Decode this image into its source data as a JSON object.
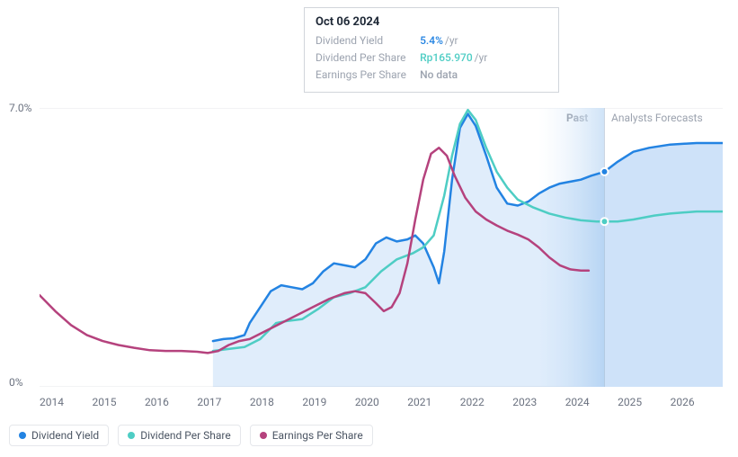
{
  "tooltip": {
    "date": "Oct 06 2024",
    "rows": [
      {
        "label": "Dividend Yield",
        "value": "5.4%",
        "unit": "/yr",
        "color": "#2383e2"
      },
      {
        "label": "Dividend Per Share",
        "value": "Rp165.970",
        "unit": "/yr",
        "color": "#4ecdc4"
      },
      {
        "label": "Earnings Per Share",
        "value": "No data",
        "unit": "",
        "color": "#9ca3af"
      }
    ]
  },
  "chart": {
    "type": "line",
    "ylim": [
      0,
      7.0
    ],
    "y_ticks": [
      0,
      7.0
    ],
    "y_tick_labels": [
      "0%",
      "7.0%"
    ],
    "x_years": [
      "2014",
      "2015",
      "2016",
      "2017",
      "2018",
      "2019",
      "2020",
      "2021",
      "2022",
      "2023",
      "2024",
      "2025",
      "2026"
    ],
    "present_x": 10.75,
    "past_region_start_x": 9.5,
    "regions": {
      "past_label": "Past",
      "forecast_label": "Analysts Forecasts"
    },
    "axis_fontsize": 12,
    "label_color": "#6b7280",
    "grid_color": "#e5e7eb",
    "background": "#ffffff",
    "past_band_fill": "#e9f2fc",
    "past_band_edge": "#cfe3f7",
    "forecast_fill": "#eaf3fd",
    "series": [
      {
        "name": "Dividend Yield",
        "color": "#2383e2",
        "fill": "rgba(35,131,226,0.14)",
        "width": 2.5,
        "marker_at": 10.75,
        "marker_y": 5.4,
        "points": [
          [
            3.3,
            1.15
          ],
          [
            3.5,
            1.2
          ],
          [
            3.7,
            1.22
          ],
          [
            3.9,
            1.3
          ],
          [
            4.0,
            1.6
          ],
          [
            4.2,
            2.0
          ],
          [
            4.4,
            2.4
          ],
          [
            4.6,
            2.55
          ],
          [
            4.8,
            2.5
          ],
          [
            5.0,
            2.45
          ],
          [
            5.2,
            2.6
          ],
          [
            5.4,
            2.9
          ],
          [
            5.6,
            3.1
          ],
          [
            5.8,
            3.05
          ],
          [
            6.0,
            3.0
          ],
          [
            6.2,
            3.2
          ],
          [
            6.4,
            3.6
          ],
          [
            6.6,
            3.75
          ],
          [
            6.8,
            3.65
          ],
          [
            7.0,
            3.7
          ],
          [
            7.15,
            3.8
          ],
          [
            7.3,
            3.6
          ],
          [
            7.5,
            3.0
          ],
          [
            7.6,
            2.6
          ],
          [
            7.7,
            3.4
          ],
          [
            7.85,
            5.2
          ],
          [
            8.0,
            6.5
          ],
          [
            8.15,
            6.85
          ],
          [
            8.3,
            6.55
          ],
          [
            8.5,
            5.8
          ],
          [
            8.7,
            5.0
          ],
          [
            8.9,
            4.6
          ],
          [
            9.1,
            4.55
          ],
          [
            9.3,
            4.65
          ],
          [
            9.5,
            4.85
          ],
          [
            9.7,
            5.0
          ],
          [
            9.9,
            5.1
          ],
          [
            10.1,
            5.15
          ],
          [
            10.3,
            5.2
          ],
          [
            10.5,
            5.3
          ],
          [
            10.75,
            5.4
          ],
          [
            11.0,
            5.65
          ],
          [
            11.3,
            5.9
          ],
          [
            11.6,
            6.0
          ],
          [
            12.0,
            6.08
          ],
          [
            12.5,
            6.12
          ],
          [
            13.0,
            6.12
          ]
        ]
      },
      {
        "name": "Dividend Per Share",
        "color": "#4ecdc4",
        "fill": "none",
        "width": 2.5,
        "marker_at": 10.75,
        "marker_y": 4.15,
        "points": [
          [
            3.3,
            0.9
          ],
          [
            3.6,
            0.95
          ],
          [
            3.9,
            1.0
          ],
          [
            4.2,
            1.2
          ],
          [
            4.5,
            1.6
          ],
          [
            4.7,
            1.65
          ],
          [
            5.0,
            1.7
          ],
          [
            5.3,
            1.95
          ],
          [
            5.6,
            2.25
          ],
          [
            5.9,
            2.35
          ],
          [
            6.2,
            2.5
          ],
          [
            6.5,
            2.9
          ],
          [
            6.8,
            3.2
          ],
          [
            7.1,
            3.35
          ],
          [
            7.3,
            3.5
          ],
          [
            7.5,
            3.8
          ],
          [
            7.7,
            4.8
          ],
          [
            7.85,
            5.8
          ],
          [
            8.0,
            6.6
          ],
          [
            8.15,
            6.95
          ],
          [
            8.3,
            6.7
          ],
          [
            8.5,
            6.0
          ],
          [
            8.7,
            5.4
          ],
          [
            8.9,
            5.0
          ],
          [
            9.1,
            4.7
          ],
          [
            9.4,
            4.5
          ],
          [
            9.7,
            4.35
          ],
          [
            10.0,
            4.25
          ],
          [
            10.3,
            4.18
          ],
          [
            10.6,
            4.15
          ],
          [
            10.75,
            4.15
          ],
          [
            11.0,
            4.15
          ],
          [
            11.3,
            4.2
          ],
          [
            11.7,
            4.3
          ],
          [
            12.0,
            4.35
          ],
          [
            12.5,
            4.4
          ],
          [
            13.0,
            4.4
          ]
        ]
      },
      {
        "name": "Earnings Per Share",
        "color": "#b5427d",
        "fill": "none",
        "width": 2.5,
        "points": [
          [
            0.0,
            2.3
          ],
          [
            0.3,
            1.9
          ],
          [
            0.6,
            1.55
          ],
          [
            0.9,
            1.3
          ],
          [
            1.2,
            1.15
          ],
          [
            1.5,
            1.05
          ],
          [
            1.8,
            0.98
          ],
          [
            2.1,
            0.92
          ],
          [
            2.4,
            0.9
          ],
          [
            2.7,
            0.9
          ],
          [
            3.0,
            0.88
          ],
          [
            3.2,
            0.85
          ],
          [
            3.4,
            0.9
          ],
          [
            3.6,
            1.05
          ],
          [
            3.8,
            1.15
          ],
          [
            4.0,
            1.2
          ],
          [
            4.3,
            1.4
          ],
          [
            4.6,
            1.6
          ],
          [
            4.9,
            1.8
          ],
          [
            5.2,
            2.0
          ],
          [
            5.5,
            2.2
          ],
          [
            5.8,
            2.35
          ],
          [
            6.0,
            2.4
          ],
          [
            6.2,
            2.35
          ],
          [
            6.4,
            2.1
          ],
          [
            6.55,
            1.9
          ],
          [
            6.7,
            2.0
          ],
          [
            6.85,
            2.35
          ],
          [
            7.0,
            3.1
          ],
          [
            7.15,
            4.2
          ],
          [
            7.3,
            5.2
          ],
          [
            7.45,
            5.85
          ],
          [
            7.6,
            6.0
          ],
          [
            7.75,
            5.8
          ],
          [
            7.9,
            5.3
          ],
          [
            8.1,
            4.75
          ],
          [
            8.3,
            4.4
          ],
          [
            8.5,
            4.2
          ],
          [
            8.7,
            4.05
          ],
          [
            8.9,
            3.92
          ],
          [
            9.1,
            3.82
          ],
          [
            9.3,
            3.7
          ],
          [
            9.5,
            3.5
          ],
          [
            9.7,
            3.25
          ],
          [
            9.9,
            3.05
          ],
          [
            10.1,
            2.95
          ],
          [
            10.3,
            2.92
          ],
          [
            10.45,
            2.92
          ]
        ]
      }
    ]
  },
  "legend": [
    {
      "label": "Dividend Yield",
      "color": "#2383e2"
    },
    {
      "label": "Dividend Per Share",
      "color": "#4ecdc4"
    },
    {
      "label": "Earnings Per Share",
      "color": "#b5427d"
    }
  ]
}
